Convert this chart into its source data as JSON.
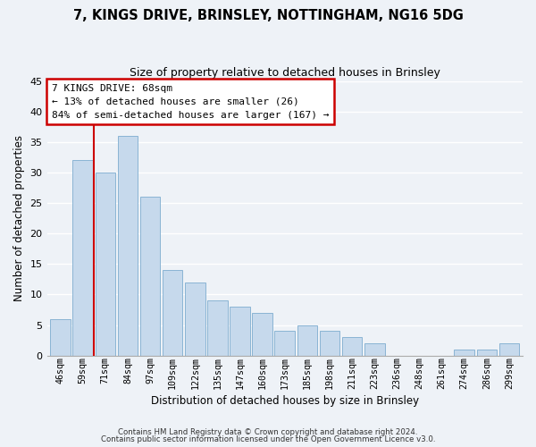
{
  "title": "7, KINGS DRIVE, BRINSLEY, NOTTINGHAM, NG16 5DG",
  "subtitle": "Size of property relative to detached houses in Brinsley",
  "xlabel": "Distribution of detached houses by size in Brinsley",
  "ylabel": "Number of detached properties",
  "bar_color": "#c6d9ec",
  "bar_edge_color": "#8ab4d4",
  "categories": [
    "46sqm",
    "59sqm",
    "71sqm",
    "84sqm",
    "97sqm",
    "109sqm",
    "122sqm",
    "135sqm",
    "147sqm",
    "160sqm",
    "173sqm",
    "185sqm",
    "198sqm",
    "211sqm",
    "223sqm",
    "236sqm",
    "248sqm",
    "261sqm",
    "274sqm",
    "286sqm",
    "299sqm"
  ],
  "values": [
    6,
    32,
    30,
    36,
    26,
    14,
    12,
    9,
    8,
    7,
    4,
    5,
    4,
    3,
    2,
    0,
    0,
    0,
    1,
    1,
    2
  ],
  "ylim": [
    0,
    45
  ],
  "yticks": [
    0,
    5,
    10,
    15,
    20,
    25,
    30,
    35,
    40,
    45
  ],
  "property_line_color": "#cc0000",
  "annotation_title": "7 KINGS DRIVE: 68sqm",
  "annotation_line1": "← 13% of detached houses are smaller (26)",
  "annotation_line2": "84% of semi-detached houses are larger (167) →",
  "annotation_box_color": "#ffffff",
  "annotation_box_edge": "#cc0000",
  "footer1": "Contains HM Land Registry data © Crown copyright and database right 2024.",
  "footer2": "Contains public sector information licensed under the Open Government Licence v3.0.",
  "background_color": "#eef2f7",
  "grid_color": "#ffffff"
}
